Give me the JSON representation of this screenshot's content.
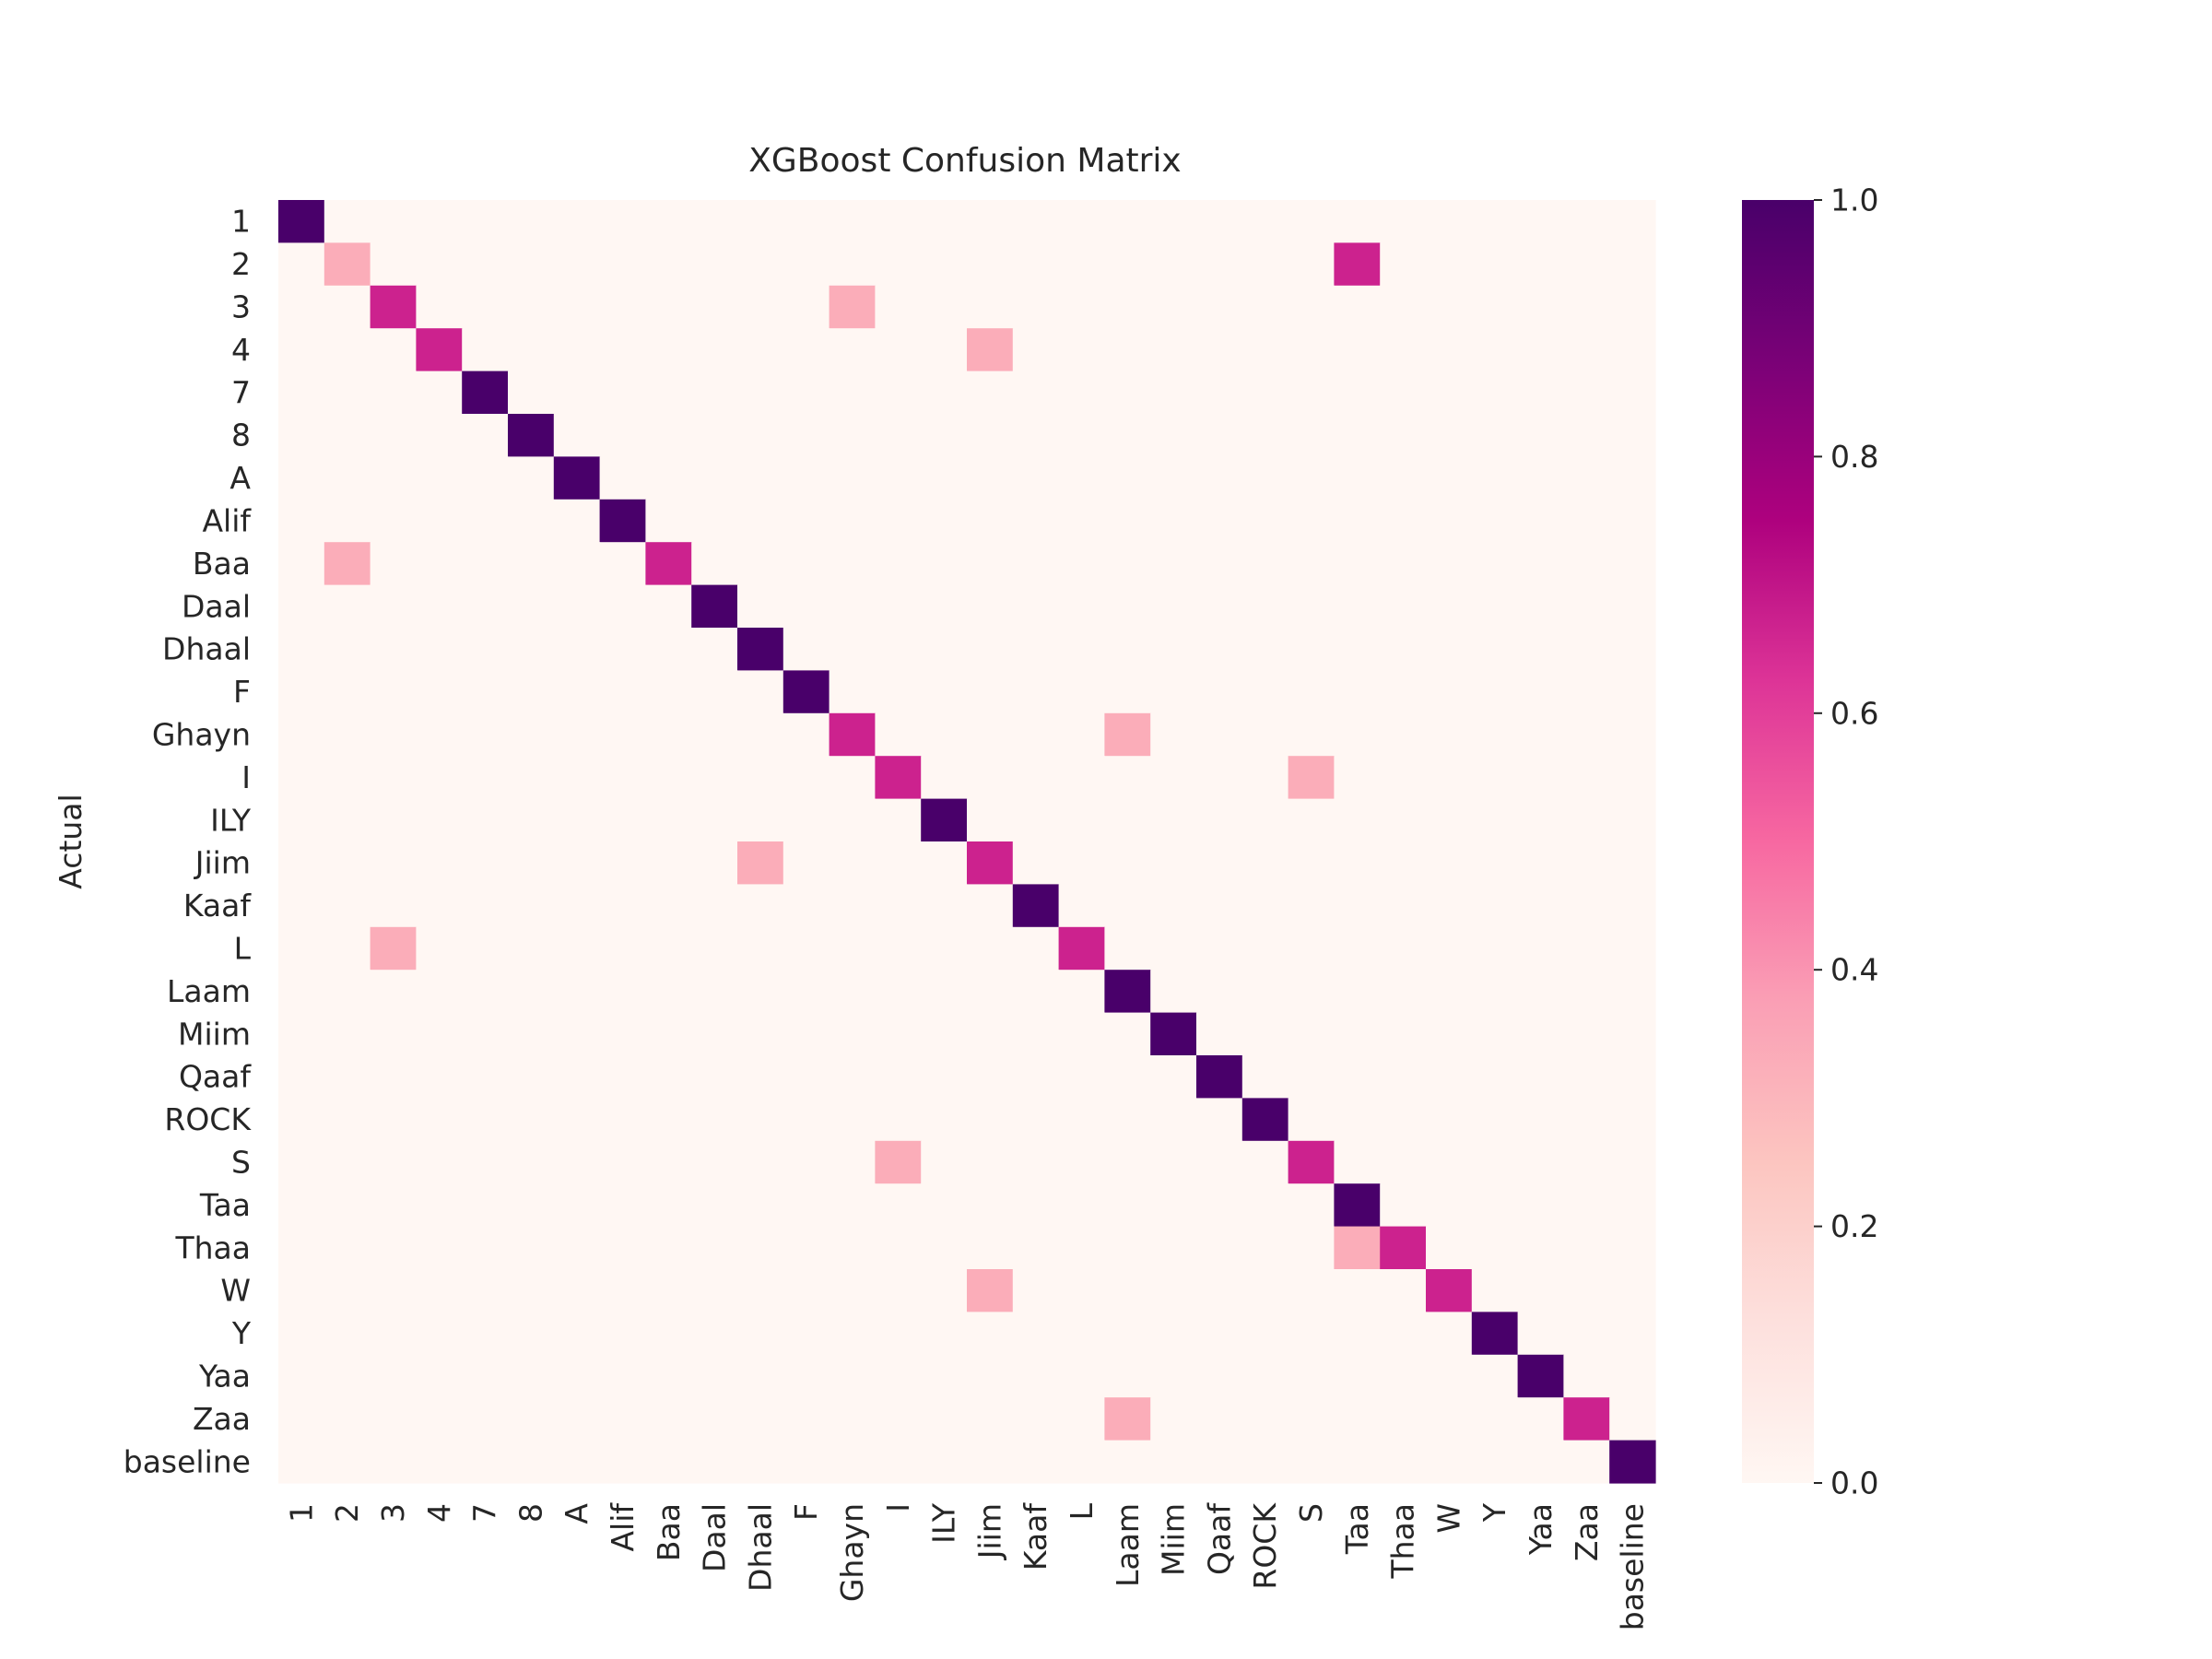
{
  "chart_data": {
    "type": "heatmap",
    "title": "XGBoost Confusion Matrix",
    "ylabel": "Actual",
    "xlabel": "",
    "labels": [
      "1",
      "2",
      "3",
      "4",
      "7",
      "8",
      "A",
      "Alif",
      "Baa",
      "Daal",
      "Dhaal",
      "F",
      "Ghayn",
      "I",
      "ILY",
      "Jiim",
      "Kaaf",
      "L",
      "Laam",
      "Miim",
      "Qaaf",
      "ROCK",
      "S",
      "Taa",
      "Thaa",
      "W",
      "Y",
      "Yaa",
      "Zaa",
      "baseline"
    ],
    "matrix": [
      [
        1,
        0,
        0,
        0,
        0,
        0,
        0,
        0,
        0,
        0,
        0,
        0,
        0,
        0,
        0,
        0,
        0,
        0,
        0,
        0,
        0,
        0,
        0,
        0,
        0,
        0,
        0,
        0,
        0,
        0
      ],
      [
        0,
        0.33,
        0,
        0,
        0,
        0,
        0,
        0,
        0,
        0,
        0,
        0,
        0,
        0,
        0,
        0,
        0,
        0,
        0,
        0,
        0,
        0,
        0,
        0.67,
        0,
        0,
        0,
        0,
        0,
        0
      ],
      [
        0,
        0,
        0.67,
        0,
        0,
        0,
        0,
        0,
        0,
        0,
        0,
        0,
        0.33,
        0,
        0,
        0,
        0,
        0,
        0,
        0,
        0,
        0,
        0,
        0,
        0,
        0,
        0,
        0,
        0,
        0
      ],
      [
        0,
        0,
        0,
        0.67,
        0,
        0,
        0,
        0,
        0,
        0,
        0,
        0,
        0,
        0,
        0,
        0.33,
        0,
        0,
        0,
        0,
        0,
        0,
        0,
        0,
        0,
        0,
        0,
        0,
        0,
        0
      ],
      [
        0,
        0,
        0,
        0,
        1,
        0,
        0,
        0,
        0,
        0,
        0,
        0,
        0,
        0,
        0,
        0,
        0,
        0,
        0,
        0,
        0,
        0,
        0,
        0,
        0,
        0,
        0,
        0,
        0,
        0
      ],
      [
        0,
        0,
        0,
        0,
        0,
        1,
        0,
        0,
        0,
        0,
        0,
        0,
        0,
        0,
        0,
        0,
        0,
        0,
        0,
        0,
        0,
        0,
        0,
        0,
        0,
        0,
        0,
        0,
        0,
        0
      ],
      [
        0,
        0,
        0,
        0,
        0,
        0,
        1,
        0,
        0,
        0,
        0,
        0,
        0,
        0,
        0,
        0,
        0,
        0,
        0,
        0,
        0,
        0,
        0,
        0,
        0,
        0,
        0,
        0,
        0,
        0
      ],
      [
        0,
        0,
        0,
        0,
        0,
        0,
        0,
        1,
        0,
        0,
        0,
        0,
        0,
        0,
        0,
        0,
        0,
        0,
        0,
        0,
        0,
        0,
        0,
        0,
        0,
        0,
        0,
        0,
        0,
        0
      ],
      [
        0,
        0.33,
        0,
        0,
        0,
        0,
        0,
        0,
        0.67,
        0,
        0,
        0,
        0,
        0,
        0,
        0,
        0,
        0,
        0,
        0,
        0,
        0,
        0,
        0,
        0,
        0,
        0,
        0,
        0,
        0
      ],
      [
        0,
        0,
        0,
        0,
        0,
        0,
        0,
        0,
        0,
        1,
        0,
        0,
        0,
        0,
        0,
        0,
        0,
        0,
        0,
        0,
        0,
        0,
        0,
        0,
        0,
        0,
        0,
        0,
        0,
        0
      ],
      [
        0,
        0,
        0,
        0,
        0,
        0,
        0,
        0,
        0,
        0,
        1,
        0,
        0,
        0,
        0,
        0,
        0,
        0,
        0,
        0,
        0,
        0,
        0,
        0,
        0,
        0,
        0,
        0,
        0,
        0
      ],
      [
        0,
        0,
        0,
        0,
        0,
        0,
        0,
        0,
        0,
        0,
        0,
        1,
        0,
        0,
        0,
        0,
        0,
        0,
        0,
        0,
        0,
        0,
        0,
        0,
        0,
        0,
        0,
        0,
        0,
        0
      ],
      [
        0,
        0,
        0,
        0,
        0,
        0,
        0,
        0,
        0,
        0,
        0,
        0,
        0.67,
        0,
        0,
        0,
        0,
        0,
        0.33,
        0,
        0,
        0,
        0,
        0,
        0,
        0,
        0,
        0,
        0,
        0
      ],
      [
        0,
        0,
        0,
        0,
        0,
        0,
        0,
        0,
        0,
        0,
        0,
        0,
        0,
        0.67,
        0,
        0,
        0,
        0,
        0,
        0,
        0,
        0,
        0.33,
        0,
        0,
        0,
        0,
        0,
        0,
        0
      ],
      [
        0,
        0,
        0,
        0,
        0,
        0,
        0,
        0,
        0,
        0,
        0,
        0,
        0,
        0,
        1,
        0,
        0,
        0,
        0,
        0,
        0,
        0,
        0,
        0,
        0,
        0,
        0,
        0,
        0,
        0
      ],
      [
        0,
        0,
        0,
        0,
        0,
        0,
        0,
        0,
        0,
        0,
        0.33,
        0,
        0,
        0,
        0,
        0.67,
        0,
        0,
        0,
        0,
        0,
        0,
        0,
        0,
        0,
        0,
        0,
        0,
        0,
        0
      ],
      [
        0,
        0,
        0,
        0,
        0,
        0,
        0,
        0,
        0,
        0,
        0,
        0,
        0,
        0,
        0,
        0,
        1,
        0,
        0,
        0,
        0,
        0,
        0,
        0,
        0,
        0,
        0,
        0,
        0,
        0
      ],
      [
        0,
        0,
        0.33,
        0,
        0,
        0,
        0,
        0,
        0,
        0,
        0,
        0,
        0,
        0,
        0,
        0,
        0,
        0.67,
        0,
        0,
        0,
        0,
        0,
        0,
        0,
        0,
        0,
        0,
        0,
        0
      ],
      [
        0,
        0,
        0,
        0,
        0,
        0,
        0,
        0,
        0,
        0,
        0,
        0,
        0,
        0,
        0,
        0,
        0,
        0,
        1,
        0,
        0,
        0,
        0,
        0,
        0,
        0,
        0,
        0,
        0,
        0
      ],
      [
        0,
        0,
        0,
        0,
        0,
        0,
        0,
        0,
        0,
        0,
        0,
        0,
        0,
        0,
        0,
        0,
        0,
        0,
        0,
        1,
        0,
        0,
        0,
        0,
        0,
        0,
        0,
        0,
        0,
        0
      ],
      [
        0,
        0,
        0,
        0,
        0,
        0,
        0,
        0,
        0,
        0,
        0,
        0,
        0,
        0,
        0,
        0,
        0,
        0,
        0,
        0,
        1,
        0,
        0,
        0,
        0,
        0,
        0,
        0,
        0,
        0
      ],
      [
        0,
        0,
        0,
        0,
        0,
        0,
        0,
        0,
        0,
        0,
        0,
        0,
        0,
        0,
        0,
        0,
        0,
        0,
        0,
        0,
        0,
        1,
        0,
        0,
        0,
        0,
        0,
        0,
        0,
        0
      ],
      [
        0,
        0,
        0,
        0,
        0,
        0,
        0,
        0,
        0,
        0,
        0,
        0,
        0,
        0.33,
        0,
        0,
        0,
        0,
        0,
        0,
        0,
        0,
        0.67,
        0,
        0,
        0,
        0,
        0,
        0,
        0
      ],
      [
        0,
        0,
        0,
        0,
        0,
        0,
        0,
        0,
        0,
        0,
        0,
        0,
        0,
        0,
        0,
        0,
        0,
        0,
        0,
        0,
        0,
        0,
        0,
        1,
        0,
        0,
        0,
        0,
        0,
        0
      ],
      [
        0,
        0,
        0,
        0,
        0,
        0,
        0,
        0,
        0,
        0,
        0,
        0,
        0,
        0,
        0,
        0,
        0,
        0,
        0,
        0,
        0,
        0,
        0,
        0.33,
        0.67,
        0,
        0,
        0,
        0,
        0
      ],
      [
        0,
        0,
        0,
        0,
        0,
        0,
        0,
        0,
        0,
        0,
        0,
        0,
        0,
        0,
        0,
        0.33,
        0,
        0,
        0,
        0,
        0,
        0,
        0,
        0,
        0,
        0.67,
        0,
        0,
        0,
        0
      ],
      [
        0,
        0,
        0,
        0,
        0,
        0,
        0,
        0,
        0,
        0,
        0,
        0,
        0,
        0,
        0,
        0,
        0,
        0,
        0,
        0,
        0,
        0,
        0,
        0,
        0,
        0,
        1,
        0,
        0,
        0
      ],
      [
        0,
        0,
        0,
        0,
        0,
        0,
        0,
        0,
        0,
        0,
        0,
        0,
        0,
        0,
        0,
        0,
        0,
        0,
        0,
        0,
        0,
        0,
        0,
        0,
        0,
        0,
        0,
        1,
        0,
        0
      ],
      [
        0,
        0,
        0,
        0,
        0,
        0,
        0,
        0,
        0,
        0,
        0,
        0,
        0,
        0,
        0,
        0,
        0,
        0,
        0.33,
        0,
        0,
        0,
        0,
        0,
        0,
        0,
        0,
        0,
        0.67,
        0
      ],
      [
        0,
        0,
        0,
        0,
        0,
        0,
        0,
        0,
        0,
        0,
        0,
        0,
        0,
        0,
        0,
        0,
        0,
        0,
        0,
        0,
        0,
        0,
        0,
        0,
        0,
        0,
        0,
        0,
        0,
        1
      ]
    ],
    "colorbar": {
      "range": [
        0,
        1
      ],
      "ticks": [
        "0.0",
        "0.2",
        "0.4",
        "0.6",
        "0.8",
        "1.0"
      ],
      "tick_values": [
        0,
        0.2,
        0.4,
        0.6,
        0.8,
        1.0
      ]
    },
    "colormap": "RdPu",
    "colormap_stops": [
      "#fff7f3",
      "#fde0dd",
      "#fcc5c0",
      "#fa9fb5",
      "#f768a1",
      "#dd3497",
      "#ae017e",
      "#7a0177",
      "#49006a"
    ],
    "grid": false
  }
}
